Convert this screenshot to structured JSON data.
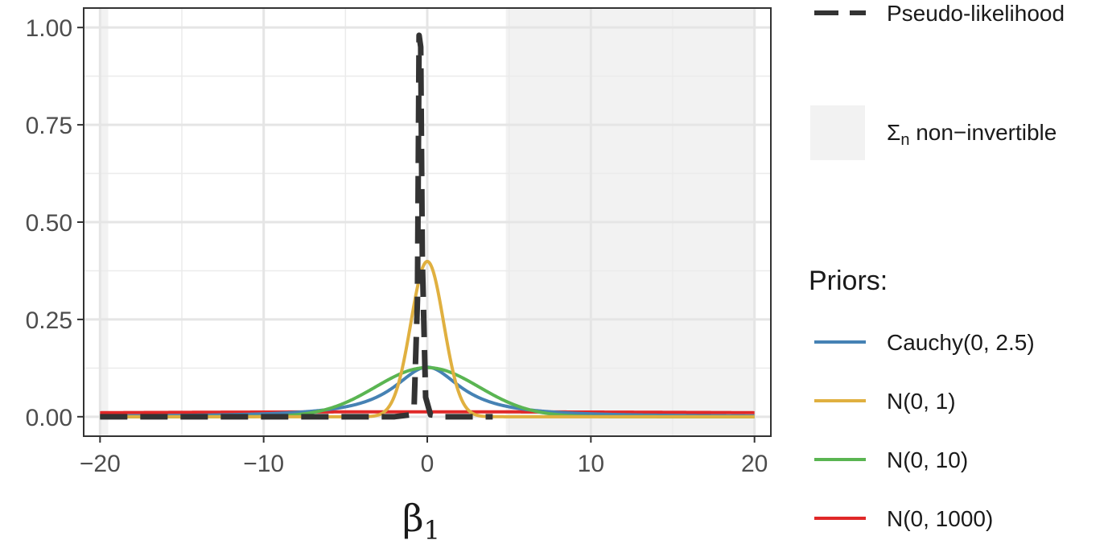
{
  "chart_data": {
    "type": "line",
    "xlabel": "β",
    "xlabel_subscript": "1",
    "ylabel": "",
    "xlim": [
      -21,
      21
    ],
    "ylim": [
      -0.05,
      1.05
    ],
    "x_ticks": [
      -20,
      -10,
      0,
      10,
      20
    ],
    "x_tick_labels": [
      "−20",
      "−10",
      "0",
      "10",
      "20"
    ],
    "y_ticks": [
      0,
      0.25,
      0.5,
      0.75,
      1.0
    ],
    "y_tick_labels": [
      "0.00",
      "0.25",
      "0.50",
      "0.75",
      "1.00"
    ],
    "grid": true,
    "legend_position": "right",
    "shaded_regions": [
      {
        "x_from": -20,
        "x_to": -19.5,
        "color": "#f2f2f2"
      },
      {
        "x_from": 4.8,
        "x_to": 20,
        "color": "#f2f2f2"
      }
    ],
    "series": [
      {
        "name": "Cauchy(0, 2.5)",
        "color": "#4682b4",
        "distribution": "cauchy",
        "params": [
          0,
          2.5
        ]
      },
      {
        "name": "N(0, 1)",
        "color": "#e0b040",
        "distribution": "normal",
        "params": [
          0,
          1
        ]
      },
      {
        "name": "N(0, 10)",
        "color": "#5ab552",
        "distribution": "normal",
        "params": [
          0,
          3.162
        ]
      },
      {
        "name": "N(0, 1000)",
        "color": "#e02828",
        "distribution": "normal",
        "params": [
          0,
          31.62
        ]
      },
      {
        "name": "Pseudo-likelihood",
        "color": "#333333",
        "dashed": true,
        "x": [
          -20,
          -2,
          -1,
          -0.8,
          -0.6,
          -0.5,
          -0.4,
          -0.3,
          -0.1,
          0.2,
          1,
          4
        ],
        "values": [
          0,
          0,
          0.005,
          0.03,
          0.3,
          0.98,
          0.95,
          0.4,
          0.05,
          0.005,
          0,
          0
        ]
      }
    ],
    "legend": {
      "pseudo_label": "Pseudo-likelihood",
      "region_label_symbol": "Σ",
      "region_label_sub": "n",
      "region_label_rest": " non−invertible",
      "priors_title": "Priors:",
      "items": [
        "Cauchy(0, 2.5)",
        "N(0, 1)",
        "N(0, 10)",
        "N(0, 1000)"
      ]
    }
  }
}
